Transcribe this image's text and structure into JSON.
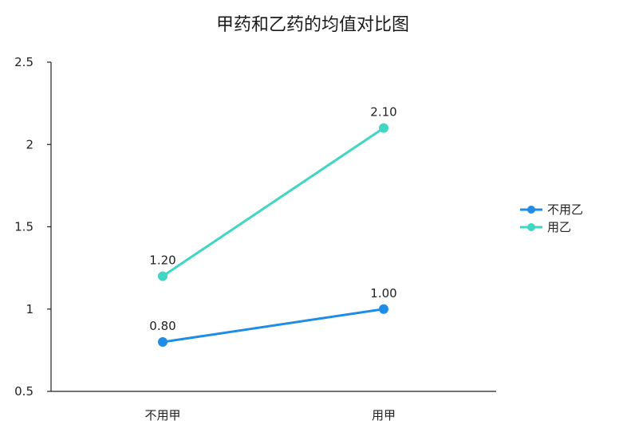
{
  "chart_data": {
    "type": "line",
    "title": "甲药和乙药的均值对比图",
    "xlabel": "",
    "ylabel": "",
    "categories": [
      "不用甲",
      "用甲"
    ],
    "series": [
      {
        "name": "不用乙",
        "values": [
          0.8,
          1.0
        ],
        "labels": [
          "0.80",
          "1.00"
        ],
        "color": "#1f8ce6"
      },
      {
        "name": "用乙",
        "values": [
          1.2,
          2.1
        ],
        "labels": [
          "1.20",
          "2.10"
        ],
        "color": "#3fd6c4"
      }
    ],
    "ylim": [
      0.5,
      2.5
    ],
    "yticks": [
      0.5,
      1,
      1.5,
      2,
      2.5
    ],
    "ytick_labels": [
      "0.5",
      "1",
      "1.5",
      "2",
      "2.5"
    ],
    "grid": false,
    "legend_position": "right"
  }
}
